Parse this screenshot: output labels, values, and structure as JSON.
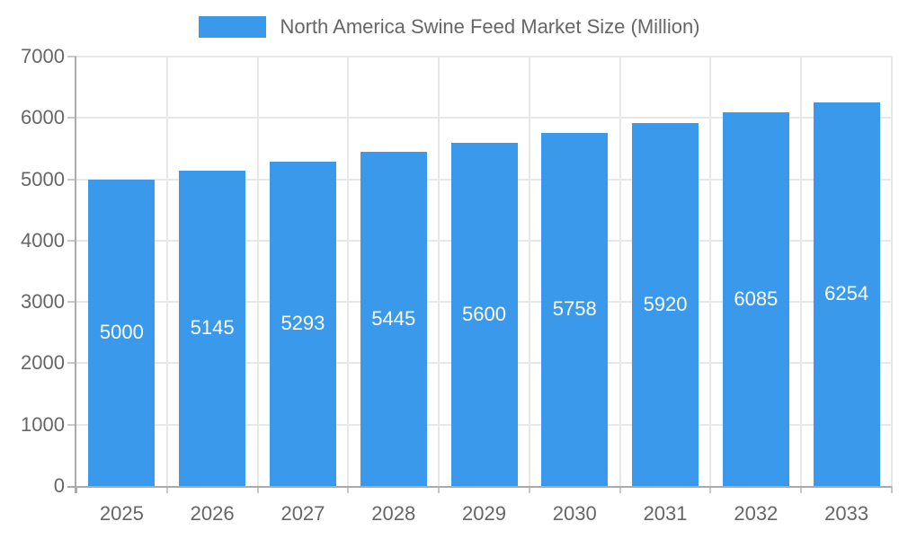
{
  "chart_data": {
    "type": "bar",
    "title": "North America Swine Feed Market Size (Million)",
    "categories": [
      "2025",
      "2026",
      "2027",
      "2028",
      "2029",
      "2030",
      "2031",
      "2032",
      "2033"
    ],
    "values": [
      5000,
      5145,
      5293,
      5445,
      5600,
      5758,
      5920,
      6085,
      6254
    ],
    "xlabel": "",
    "ylabel": "",
    "ylim": [
      0,
      7000
    ],
    "yticks": [
      0,
      1000,
      2000,
      3000,
      4000,
      5000,
      6000,
      7000
    ],
    "grid": true,
    "legend_position": "top-center",
    "value_labels": "inside-center",
    "colors": {
      "bar": "#3B99EC",
      "value_label": "#FFFFFF",
      "axis_text": "#666666",
      "grid_line": "#E8E8E8",
      "tick_line": "#C9C9C9",
      "axis_line": "#AAAAAA",
      "background": "#FFFFFF"
    }
  }
}
